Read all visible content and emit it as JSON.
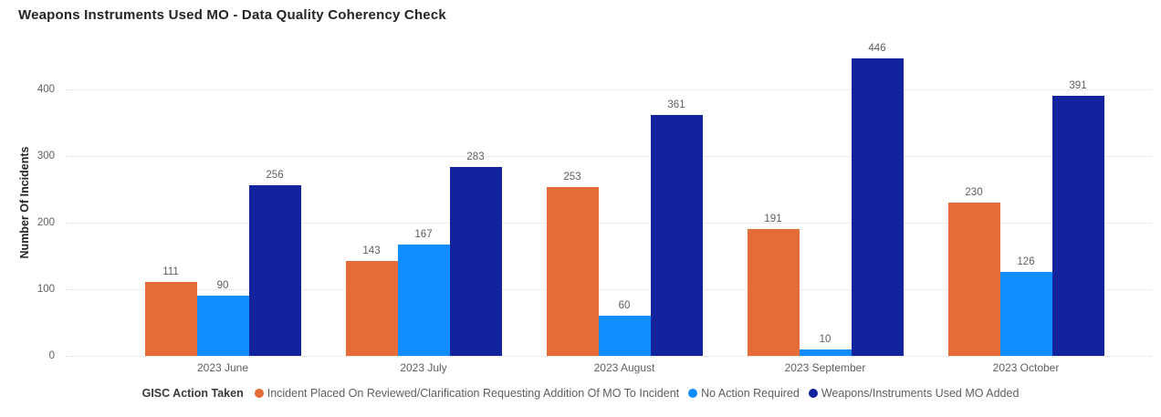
{
  "title": "Weapons Instruments Used MO - Data Quality Coherency Check",
  "legend": {
    "title": "GISC Action Taken"
  },
  "colors": {
    "title_text": "#252423",
    "axis_text": "#605e5c",
    "gridline": "#d8d8d8",
    "series_orange": "#E66C37",
    "series_light_blue": "#118DFF",
    "series_dark_blue": "#12239E"
  },
  "chart_data": {
    "type": "bar",
    "title": "Weapons Instruments Used MO - Data Quality Coherency Check",
    "xlabel": "",
    "ylabel": "Number Of Incidents",
    "legend_title": "GISC Action Taken",
    "legend_position": "bottom",
    "grid": "horizontal-dotted",
    "ylim": [
      0,
      472
    ],
    "yticks": [
      0,
      100,
      200,
      300,
      400
    ],
    "categories": [
      "2023 June",
      "2023 July",
      "2023 August",
      "2023 September",
      "2023 October"
    ],
    "series": [
      {
        "name": "Incident Placed On Reviewed/Clarification Requesting Addition Of MO To Incident",
        "color": "#E66C37",
        "values": [
          111,
          143,
          253,
          191,
          230
        ]
      },
      {
        "name": "No Action Required",
        "color": "#118DFF",
        "values": [
          90,
          167,
          60,
          10,
          126
        ]
      },
      {
        "name": "Weapons/Instruments Used MO Added",
        "color": "#12239E",
        "values": [
          256,
          283,
          361,
          446,
          391
        ]
      }
    ],
    "data_labels": true
  }
}
